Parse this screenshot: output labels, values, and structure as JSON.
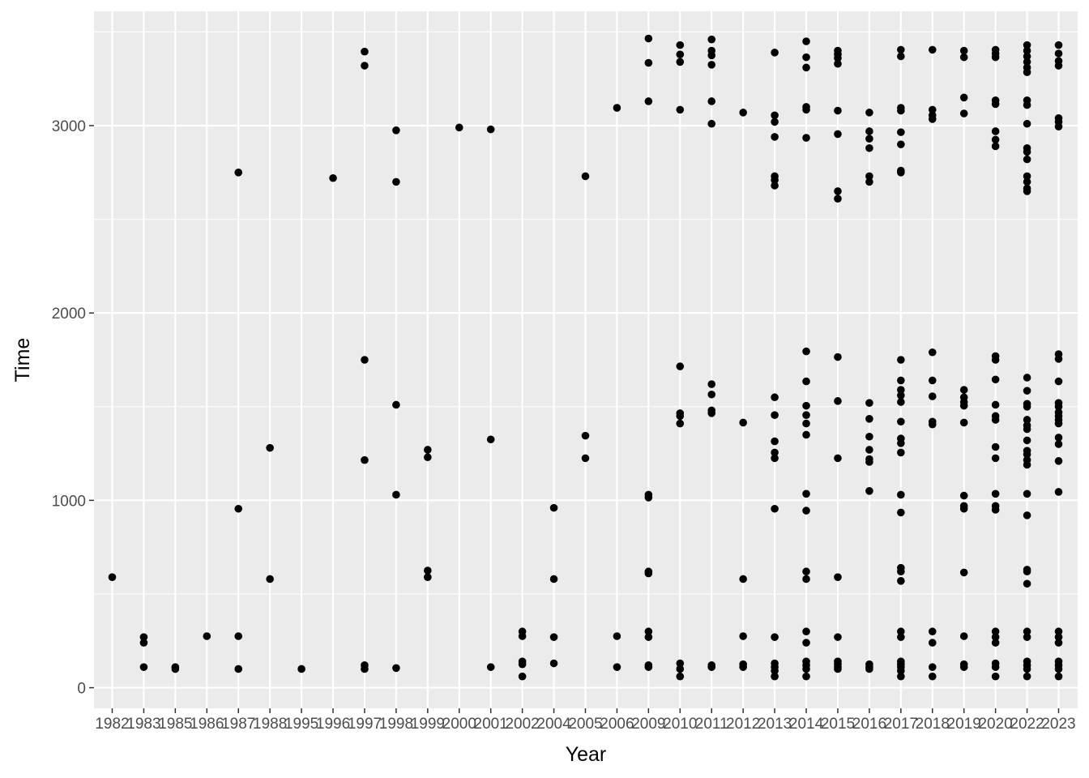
{
  "chart_data": {
    "type": "scatter",
    "xlabel": "Year",
    "ylabel": "Time",
    "categories": [
      "1982",
      "1983",
      "1985",
      "1986",
      "1987",
      "1988",
      "1995",
      "1996",
      "1997",
      "1998",
      "1999",
      "2000",
      "2001",
      "2002",
      "2004",
      "2005",
      "2006",
      "2009",
      "2010",
      "2011",
      "2012",
      "2013",
      "2014",
      "2015",
      "2016",
      "2017",
      "2018",
      "2019",
      "2020",
      "2022",
      "2023"
    ],
    "y_ticks": [
      0,
      1000,
      2000,
      3000
    ],
    "y_tick_labels": [
      "0",
      "1000",
      "2000",
      "3000"
    ],
    "ylim": [
      -110,
      3610
    ],
    "grid": true,
    "colors": {
      "panel": "#ebebeb",
      "grid": "#ffffff",
      "point": "#000000"
    },
    "points": [
      [
        "1982",
        590
      ],
      [
        "1983",
        270
      ],
      [
        "1983",
        240
      ],
      [
        "1983",
        110
      ],
      [
        "1985",
        110
      ],
      [
        "1985",
        100
      ],
      [
        "1986",
        275
      ],
      [
        "1987",
        2750
      ],
      [
        "1987",
        955
      ],
      [
        "1987",
        275
      ],
      [
        "1987",
        100
      ],
      [
        "1988",
        1280
      ],
      [
        "1988",
        580
      ],
      [
        "1995",
        100
      ],
      [
        "1996",
        2720
      ],
      [
        "1997",
        3395
      ],
      [
        "1997",
        3320
      ],
      [
        "1997",
        1750
      ],
      [
        "1997",
        1215
      ],
      [
        "1997",
        120
      ],
      [
        "1997",
        100
      ],
      [
        "1998",
        2975
      ],
      [
        "1998",
        2700
      ],
      [
        "1998",
        1510
      ],
      [
        "1998",
        1030
      ],
      [
        "1998",
        105
      ],
      [
        "1999",
        1270
      ],
      [
        "1999",
        1230
      ],
      [
        "1999",
        625
      ],
      [
        "1999",
        590
      ],
      [
        "2000",
        2990
      ],
      [
        "2001",
        2980
      ],
      [
        "2001",
        1325
      ],
      [
        "2001",
        110
      ],
      [
        "2002",
        300
      ],
      [
        "2002",
        275
      ],
      [
        "2002",
        140
      ],
      [
        "2002",
        125
      ],
      [
        "2002",
        60
      ],
      [
        "2004",
        960
      ],
      [
        "2004",
        580
      ],
      [
        "2004",
        270
      ],
      [
        "2004",
        130
      ],
      [
        "2005",
        2730
      ],
      [
        "2005",
        1345
      ],
      [
        "2005",
        1225
      ],
      [
        "2006",
        3095
      ],
      [
        "2006",
        275
      ],
      [
        "2006",
        110
      ],
      [
        "2009",
        3465
      ],
      [
        "2009",
        3335
      ],
      [
        "2009",
        3130
      ],
      [
        "2009",
        1030
      ],
      [
        "2009",
        1015
      ],
      [
        "2009",
        620
      ],
      [
        "2009",
        610
      ],
      [
        "2009",
        300
      ],
      [
        "2009",
        270
      ],
      [
        "2009",
        120
      ],
      [
        "2009",
        110
      ],
      [
        "2010",
        3430
      ],
      [
        "2010",
        3380
      ],
      [
        "2010",
        3340
      ],
      [
        "2010",
        3085
      ],
      [
        "2010",
        1715
      ],
      [
        "2010",
        1465
      ],
      [
        "2010",
        1450
      ],
      [
        "2010",
        1410
      ],
      [
        "2010",
        130
      ],
      [
        "2010",
        100
      ],
      [
        "2010",
        60
      ],
      [
        "2011",
        3460
      ],
      [
        "2011",
        3400
      ],
      [
        "2011",
        3375
      ],
      [
        "2011",
        3325
      ],
      [
        "2011",
        3130
      ],
      [
        "2011",
        3010
      ],
      [
        "2011",
        1620
      ],
      [
        "2011",
        1565
      ],
      [
        "2011",
        1480
      ],
      [
        "2011",
        1465
      ],
      [
        "2011",
        120
      ],
      [
        "2011",
        110
      ],
      [
        "2012",
        3070
      ],
      [
        "2012",
        1415
      ],
      [
        "2012",
        580
      ],
      [
        "2012",
        275
      ],
      [
        "2012",
        125
      ],
      [
        "2012",
        110
      ],
      [
        "2013",
        3390
      ],
      [
        "2013",
        3055
      ],
      [
        "2013",
        3020
      ],
      [
        "2013",
        2940
      ],
      [
        "2013",
        2730
      ],
      [
        "2013",
        2710
      ],
      [
        "2013",
        2680
      ],
      [
        "2013",
        1550
      ],
      [
        "2013",
        1455
      ],
      [
        "2013",
        1315
      ],
      [
        "2013",
        1255
      ],
      [
        "2013",
        1225
      ],
      [
        "2013",
        955
      ],
      [
        "2013",
        270
      ],
      [
        "2013",
        130
      ],
      [
        "2013",
        110
      ],
      [
        "2013",
        90
      ],
      [
        "2013",
        60
      ],
      [
        "2014",
        3450
      ],
      [
        "2014",
        3365
      ],
      [
        "2014",
        3310
      ],
      [
        "2014",
        3100
      ],
      [
        "2014",
        3085
      ],
      [
        "2014",
        2935
      ],
      [
        "2014",
        1795
      ],
      [
        "2014",
        1635
      ],
      [
        "2014",
        1505
      ],
      [
        "2014",
        1455
      ],
      [
        "2014",
        1410
      ],
      [
        "2014",
        1350
      ],
      [
        "2014",
        1035
      ],
      [
        "2014",
        945
      ],
      [
        "2014",
        620
      ],
      [
        "2014",
        580
      ],
      [
        "2014",
        300
      ],
      [
        "2014",
        240
      ],
      [
        "2014",
        140
      ],
      [
        "2014",
        120
      ],
      [
        "2014",
        100
      ],
      [
        "2014",
        60
      ],
      [
        "2015",
        3400
      ],
      [
        "2015",
        3380
      ],
      [
        "2015",
        3360
      ],
      [
        "2015",
        3330
      ],
      [
        "2015",
        3080
      ],
      [
        "2015",
        2955
      ],
      [
        "2015",
        2650
      ],
      [
        "2015",
        2610
      ],
      [
        "2015",
        1765
      ],
      [
        "2015",
        1530
      ],
      [
        "2015",
        1225
      ],
      [
        "2015",
        590
      ],
      [
        "2015",
        270
      ],
      [
        "2015",
        140
      ],
      [
        "2015",
        125
      ],
      [
        "2015",
        110
      ],
      [
        "2015",
        100
      ],
      [
        "2016",
        3070
      ],
      [
        "2016",
        2970
      ],
      [
        "2016",
        2930
      ],
      [
        "2016",
        2880
      ],
      [
        "2016",
        2730
      ],
      [
        "2016",
        2700
      ],
      [
        "2016",
        1520
      ],
      [
        "2016",
        1435
      ],
      [
        "2016",
        1340
      ],
      [
        "2016",
        1270
      ],
      [
        "2016",
        1220
      ],
      [
        "2016",
        1205
      ],
      [
        "2016",
        1050
      ],
      [
        "2016",
        125
      ],
      [
        "2016",
        110
      ],
      [
        "2016",
        100
      ],
      [
        "2017",
        3405
      ],
      [
        "2017",
        3370
      ],
      [
        "2017",
        3095
      ],
      [
        "2017",
        3080
      ],
      [
        "2017",
        2965
      ],
      [
        "2017",
        2900
      ],
      [
        "2017",
        2760
      ],
      [
        "2017",
        2750
      ],
      [
        "2017",
        1750
      ],
      [
        "2017",
        1640
      ],
      [
        "2017",
        1590
      ],
      [
        "2017",
        1560
      ],
      [
        "2017",
        1525
      ],
      [
        "2017",
        1420
      ],
      [
        "2017",
        1330
      ],
      [
        "2017",
        1305
      ],
      [
        "2017",
        1255
      ],
      [
        "2017",
        1030
      ],
      [
        "2017",
        935
      ],
      [
        "2017",
        640
      ],
      [
        "2017",
        620
      ],
      [
        "2017",
        570
      ],
      [
        "2017",
        300
      ],
      [
        "2017",
        270
      ],
      [
        "2017",
        140
      ],
      [
        "2017",
        125
      ],
      [
        "2017",
        110
      ],
      [
        "2017",
        90
      ],
      [
        "2017",
        60
      ],
      [
        "2018",
        3405
      ],
      [
        "2018",
        3085
      ],
      [
        "2018",
        3055
      ],
      [
        "2018",
        3035
      ],
      [
        "2018",
        1790
      ],
      [
        "2018",
        1640
      ],
      [
        "2018",
        1555
      ],
      [
        "2018",
        1420
      ],
      [
        "2018",
        1405
      ],
      [
        "2018",
        300
      ],
      [
        "2018",
        240
      ],
      [
        "2018",
        110
      ],
      [
        "2018",
        60
      ],
      [
        "2019",
        3400
      ],
      [
        "2019",
        3365
      ],
      [
        "2019",
        3150
      ],
      [
        "2019",
        3065
      ],
      [
        "2019",
        1590
      ],
      [
        "2019",
        1550
      ],
      [
        "2019",
        1525
      ],
      [
        "2019",
        1505
      ],
      [
        "2019",
        1415
      ],
      [
        "2019",
        1025
      ],
      [
        "2019",
        970
      ],
      [
        "2019",
        955
      ],
      [
        "2019",
        615
      ],
      [
        "2019",
        275
      ],
      [
        "2019",
        125
      ],
      [
        "2019",
        110
      ],
      [
        "2020",
        3405
      ],
      [
        "2020",
        3385
      ],
      [
        "2020",
        3365
      ],
      [
        "2020",
        3135
      ],
      [
        "2020",
        3115
      ],
      [
        "2020",
        2970
      ],
      [
        "2020",
        2925
      ],
      [
        "2020",
        2890
      ],
      [
        "2020",
        1770
      ],
      [
        "2020",
        1750
      ],
      [
        "2020",
        1645
      ],
      [
        "2020",
        1510
      ],
      [
        "2020",
        1450
      ],
      [
        "2020",
        1430
      ],
      [
        "2020",
        1285
      ],
      [
        "2020",
        1225
      ],
      [
        "2020",
        1035
      ],
      [
        "2020",
        970
      ],
      [
        "2020",
        950
      ],
      [
        "2020",
        300
      ],
      [
        "2020",
        270
      ],
      [
        "2020",
        240
      ],
      [
        "2020",
        130
      ],
      [
        "2020",
        110
      ],
      [
        "2020",
        60
      ],
      [
        "2022",
        3430
      ],
      [
        "2022",
        3400
      ],
      [
        "2022",
        3370
      ],
      [
        "2022",
        3340
      ],
      [
        "2022",
        3310
      ],
      [
        "2022",
        3285
      ],
      [
        "2022",
        3135
      ],
      [
        "2022",
        3110
      ],
      [
        "2022",
        3010
      ],
      [
        "2022",
        2880
      ],
      [
        "2022",
        2860
      ],
      [
        "2022",
        2820
      ],
      [
        "2022",
        2730
      ],
      [
        "2022",
        2700
      ],
      [
        "2022",
        2665
      ],
      [
        "2022",
        2650
      ],
      [
        "2022",
        1655
      ],
      [
        "2022",
        1585
      ],
      [
        "2022",
        1515
      ],
      [
        "2022",
        1500
      ],
      [
        "2022",
        1430
      ],
      [
        "2022",
        1400
      ],
      [
        "2022",
        1380
      ],
      [
        "2022",
        1320
      ],
      [
        "2022",
        1265
      ],
      [
        "2022",
        1245
      ],
      [
        "2022",
        1215
      ],
      [
        "2022",
        1190
      ],
      [
        "2022",
        1035
      ],
      [
        "2022",
        920
      ],
      [
        "2022",
        630
      ],
      [
        "2022",
        620
      ],
      [
        "2022",
        555
      ],
      [
        "2022",
        300
      ],
      [
        "2022",
        270
      ],
      [
        "2022",
        140
      ],
      [
        "2022",
        120
      ],
      [
        "2022",
        100
      ],
      [
        "2022",
        60
      ],
      [
        "2023",
        3430
      ],
      [
        "2023",
        3385
      ],
      [
        "2023",
        3345
      ],
      [
        "2023",
        3320
      ],
      [
        "2023",
        3040
      ],
      [
        "2023",
        3020
      ],
      [
        "2023",
        2995
      ],
      [
        "2023",
        1780
      ],
      [
        "2023",
        1755
      ],
      [
        "2023",
        1635
      ],
      [
        "2023",
        1520
      ],
      [
        "2023",
        1500
      ],
      [
        "2023",
        1470
      ],
      [
        "2023",
        1450
      ],
      [
        "2023",
        1430
      ],
      [
        "2023",
        1410
      ],
      [
        "2023",
        1335
      ],
      [
        "2023",
        1300
      ],
      [
        "2023",
        1210
      ],
      [
        "2023",
        1045
      ],
      [
        "2023",
        300
      ],
      [
        "2023",
        270
      ],
      [
        "2023",
        240
      ],
      [
        "2023",
        140
      ],
      [
        "2023",
        120
      ],
      [
        "2023",
        100
      ],
      [
        "2023",
        60
      ]
    ]
  }
}
